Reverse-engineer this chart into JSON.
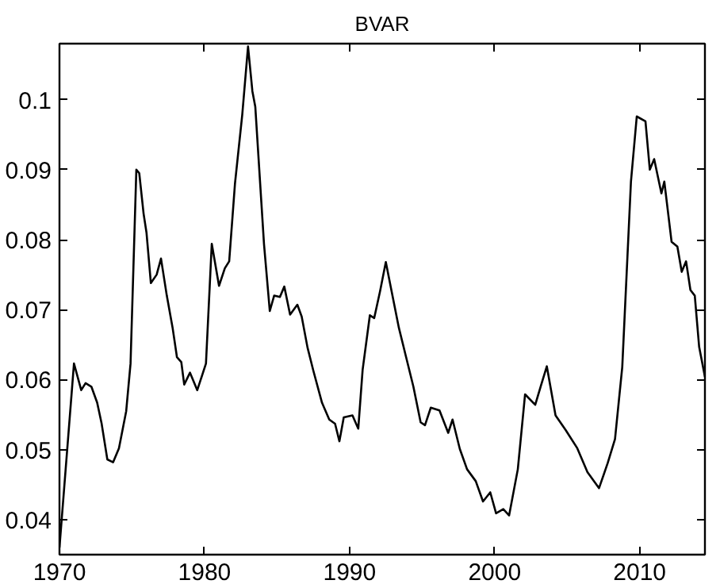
{
  "chart_data": {
    "type": "line",
    "title": "BVAR",
    "x": [
      1970.0,
      1971.0,
      1971.5,
      1971.8,
      1972.2,
      1972.6,
      1972.9,
      1973.3,
      1973.7,
      1974.1,
      1974.6,
      1974.9,
      1975.3,
      1975.5,
      1975.8,
      1976.0,
      1976.3,
      1976.7,
      1977.0,
      1977.4,
      1977.8,
      1978.1,
      1978.4,
      1978.6,
      1979.0,
      1979.5,
      1980.1,
      1980.5,
      1981.0,
      1981.4,
      1981.7,
      1982.1,
      1982.6,
      1983.0,
      1983.3,
      1983.5,
      1984.1,
      1984.5,
      1984.8,
      1985.2,
      1985.5,
      1985.9,
      1986.4,
      1986.7,
      1987.1,
      1987.5,
      1988.1,
      1988.6,
      1989.0,
      1989.3,
      1989.6,
      1990.2,
      1990.6,
      1990.9,
      1991.4,
      1991.7,
      1992.1,
      1992.5,
      1992.9,
      1993.4,
      1993.9,
      1994.4,
      1994.9,
      1995.2,
      1995.6,
      1996.2,
      1996.8,
      1997.1,
      1997.6,
      1998.1,
      1998.7,
      1999.2,
      1999.7,
      2000.1,
      2000.6,
      2001.0,
      2001.6,
      2002.1,
      2002.8,
      2003.2,
      2003.6,
      2004.2,
      2004.9,
      2005.7,
      2006.4,
      2007.2,
      2007.8,
      2008.3,
      2008.8,
      2009.4,
      2009.8,
      2010.4,
      2010.7,
      2011.0,
      2011.5,
      2011.7,
      2012.2,
      2012.6,
      2012.9,
      2013.2,
      2013.5,
      2013.8,
      2014.1,
      2014.5
    ],
    "series": [
      {
        "color": "#000000",
        "values": [
          0.036,
          0.0623,
          0.0585,
          0.0595,
          0.059,
          0.0567,
          0.0538,
          0.0486,
          0.0482,
          0.0502,
          0.0555,
          0.0623,
          0.09,
          0.0895,
          0.0837,
          0.081,
          0.0738,
          0.075,
          0.0773,
          0.072,
          0.0674,
          0.0632,
          0.0625,
          0.0593,
          0.061,
          0.0585,
          0.0623,
          0.0794,
          0.0734,
          0.0759,
          0.0769,
          0.088,
          0.0978,
          0.1076,
          0.1012,
          0.099,
          0.0794,
          0.0698,
          0.072,
          0.0718,
          0.0733,
          0.0693,
          0.0707,
          0.069,
          0.0646,
          0.0613,
          0.0567,
          0.0543,
          0.0537,
          0.0512,
          0.0546,
          0.0549,
          0.053,
          0.0614,
          0.0692,
          0.0688,
          0.0726,
          0.0768,
          0.0726,
          0.0674,
          0.0632,
          0.059,
          0.0539,
          0.0535,
          0.056,
          0.0556,
          0.0524,
          0.0543,
          0.0501,
          0.0472,
          0.0455,
          0.0426,
          0.0439,
          0.0409,
          0.0415,
          0.0406,
          0.0472,
          0.0579,
          0.0564,
          0.0592,
          0.0619,
          0.0549,
          0.0528,
          0.0502,
          0.0468,
          0.0445,
          0.0481,
          0.0515,
          0.0618,
          0.0883,
          0.0976,
          0.0969,
          0.09,
          0.0915,
          0.0866,
          0.0883,
          0.0797,
          0.079,
          0.0754,
          0.0769,
          0.0728,
          0.072,
          0.0647,
          0.0604
        ]
      }
    ],
    "xlim": [
      1970,
      2014.5
    ],
    "ylim": [
      0.035,
      0.108
    ],
    "xticks": [
      1970,
      1980,
      1990,
      2000,
      2010
    ],
    "yticks": [
      0.04,
      0.05,
      0.06,
      0.07,
      0.08,
      0.09,
      0.1
    ],
    "grid": false,
    "line_style": "solid"
  }
}
